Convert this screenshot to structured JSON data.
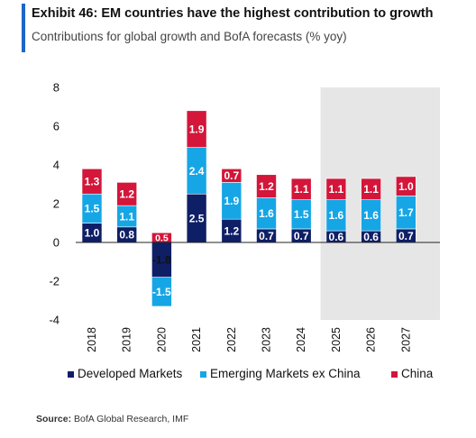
{
  "header": {
    "title": "Exhibit 46: EM countries have the highest contribution to growth",
    "subtitle": "Contributions for global growth and BofA forecasts (% yoy)"
  },
  "source": {
    "label": "Source:",
    "text": " BofA Global Research, IMF"
  },
  "colors": {
    "developed": "#0f1f66",
    "emerging": "#16a6e6",
    "china": "#d3163a",
    "forecast_shade": "#e6e6e6",
    "accent": "#1b66c9"
  },
  "chart_data": {
    "type": "bar",
    "stacked": true,
    "categories": [
      "2018",
      "2019",
      "2020",
      "2021",
      "2022",
      "2023",
      "2024",
      "2025",
      "2026",
      "2027"
    ],
    "series": [
      {
        "name": "Developed Markets",
        "values": [
          1.0,
          0.8,
          -1.8,
          2.5,
          1.2,
          0.7,
          0.7,
          0.6,
          0.6,
          0.7
        ],
        "labels": [
          "1.0",
          "0.8",
          "-1.8",
          "2.5",
          "1.2",
          "0.7",
          "0.7",
          "0.6",
          "0.6",
          "0.7"
        ]
      },
      {
        "name": "Emerging Markets ex China",
        "values": [
          1.5,
          1.1,
          -1.5,
          2.4,
          1.9,
          1.6,
          1.5,
          1.6,
          1.6,
          1.7
        ],
        "labels": [
          "1.5",
          "1.1",
          "-1.5",
          "2.4",
          "1.9",
          "1.6",
          "1.5",
          "1.6",
          "1.6",
          "1.7"
        ]
      },
      {
        "name": "China",
        "values": [
          1.3,
          1.2,
          0.5,
          1.9,
          0.7,
          1.2,
          1.1,
          1.1,
          1.1,
          1.0
        ],
        "labels": [
          "1.3",
          "1.2",
          "0.5",
          "1.9",
          "0.7",
          "1.2",
          "1.1",
          "1.1",
          "1.1",
          "1.0"
        ]
      }
    ],
    "ylim": [
      -4,
      8
    ],
    "yticks": [
      "-4",
      "-2",
      "0",
      "2",
      "4",
      "6",
      "8"
    ],
    "forecast_shaded_categories": [
      "2025",
      "2026",
      "2027"
    ],
    "legend_position": "bottom",
    "grid": false
  }
}
